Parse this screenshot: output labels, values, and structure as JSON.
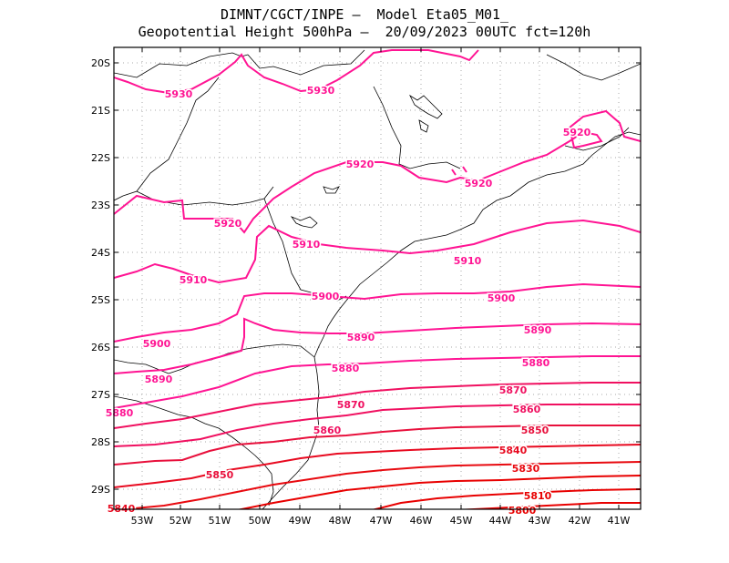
{
  "title_line1": "DIMNT/CGCT/INPE —  Model Eta05_M01_",
  "title_line2": "Geopotential Height 500hPa —  20/09/2023 00UTC fct=120h",
  "lat_labels": [
    "20S",
    "21S",
    "22S",
    "23S",
    "24S",
    "25S",
    "26S",
    "27S",
    "28S",
    "29S"
  ],
  "lon_labels": [
    "53W",
    "52W",
    "51W",
    "50W",
    "49W",
    "48W",
    "47W",
    "46W",
    "45W",
    "44W",
    "43W",
    "42W",
    "41W"
  ],
  "contour_labels": [
    {
      "text": "5930",
      "color": "#ff1493"
    },
    {
      "text": "5930",
      "color": "#ff1493"
    },
    {
      "text": "5920",
      "color": "#ff1493"
    },
    {
      "text": "5920",
      "color": "#ff1493"
    },
    {
      "text": "5920",
      "color": "#ff1493"
    },
    {
      "text": "5920",
      "color": "#ff1493"
    },
    {
      "text": "5910",
      "color": "#ff1493"
    },
    {
      "text": "5910",
      "color": "#ff1493"
    },
    {
      "text": "5910",
      "color": "#ff1493"
    },
    {
      "text": "5900",
      "color": "#ff1493"
    },
    {
      "text": "5900",
      "color": "#ff1493"
    },
    {
      "text": "5900",
      "color": "#ff1493"
    },
    {
      "text": "5890",
      "color": "#ff1493"
    },
    {
      "text": "5890",
      "color": "#ff1493"
    },
    {
      "text": "5890",
      "color": "#ff1493"
    },
    {
      "text": "5880",
      "color": "#ff1493"
    },
    {
      "text": "5880",
      "color": "#ff1493"
    },
    {
      "text": "5880",
      "color": "#ff1493"
    },
    {
      "text": "5870",
      "color": "#f01060"
    },
    {
      "text": "5870",
      "color": "#f01060"
    },
    {
      "text": "5860",
      "color": "#f01060"
    },
    {
      "text": "5860",
      "color": "#f01060"
    },
    {
      "text": "5850",
      "color": "#e8103c"
    },
    {
      "text": "5850",
      "color": "#e8103c"
    },
    {
      "text": "5840",
      "color": "#e80a20"
    },
    {
      "text": "5840",
      "color": "#e80a20"
    },
    {
      "text": "5830",
      "color": "#e80a10"
    },
    {
      "text": "5810",
      "color": "#e80000"
    },
    {
      "text": "5800",
      "color": "#e80000"
    }
  ]
}
